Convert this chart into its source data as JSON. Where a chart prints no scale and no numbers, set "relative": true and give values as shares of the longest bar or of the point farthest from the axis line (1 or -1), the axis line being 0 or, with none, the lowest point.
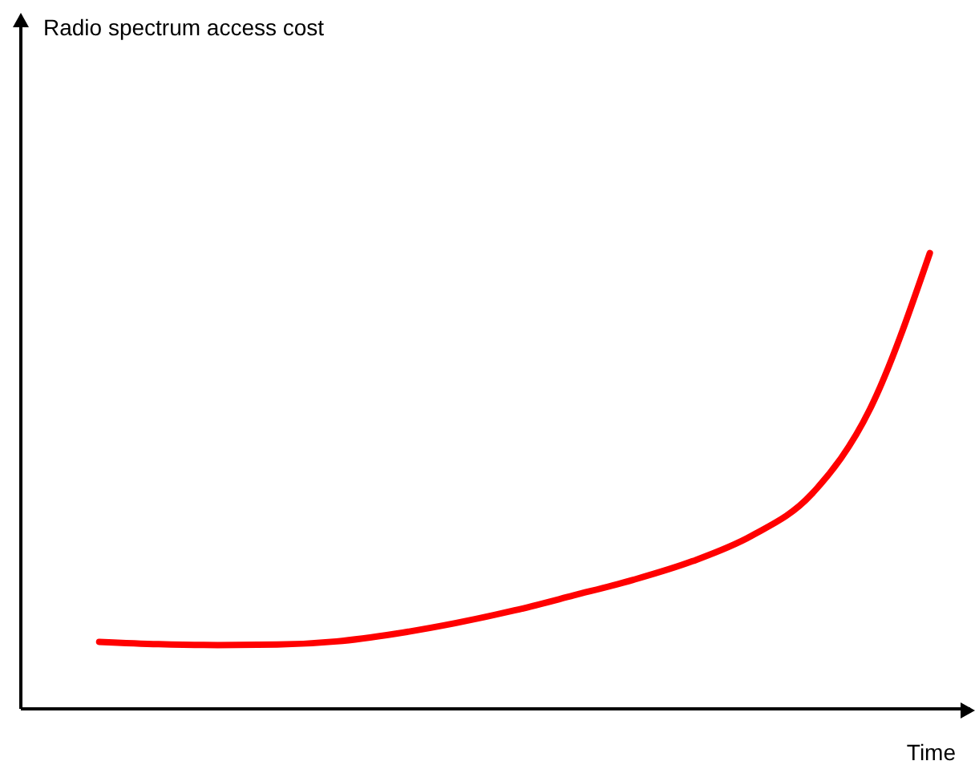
{
  "chart_data": {
    "type": "line",
    "relative": true,
    "xlabel": "Time",
    "annotations": [
      "Radio spectrum access cost"
    ],
    "categories": [
      null,
      null,
      null,
      null,
      null,
      null,
      null,
      null,
      null,
      null,
      null,
      null,
      null,
      null,
      null
    ],
    "color": "#ff0000",
    "values": [
      0.147,
      0.142,
      0.14,
      0.141,
      0.148,
      0.165,
      0.188,
      0.216,
      0.249,
      0.283,
      0.324,
      0.38,
      0.47,
      0.66,
      1
    ]
  }
}
